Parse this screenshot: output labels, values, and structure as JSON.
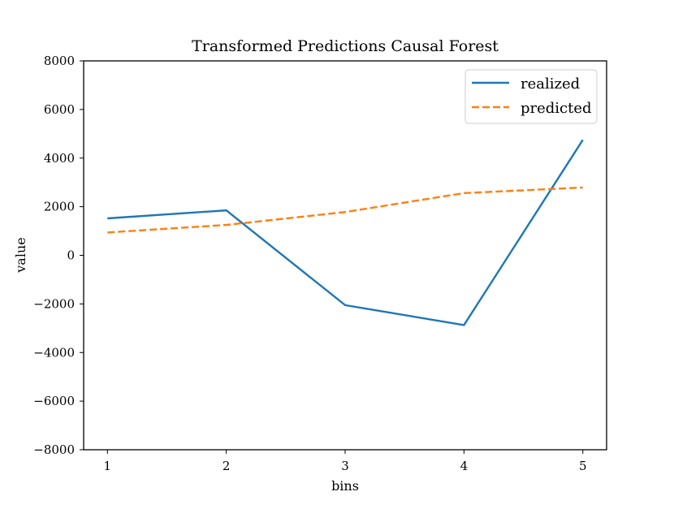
{
  "chart_data": {
    "type": "line",
    "title": "Transformed Predictions Causal Forest",
    "xlabel": "bins",
    "ylabel": "value",
    "x": [
      1,
      2,
      3,
      4,
      5
    ],
    "xlim": [
      0.8,
      5.2
    ],
    "ylim": [
      -8000,
      8000
    ],
    "x_ticks": [
      1,
      2,
      3,
      4,
      5
    ],
    "x_tick_labels": [
      "1",
      "2",
      "3",
      "4",
      "5"
    ],
    "y_ticks": [
      8000,
      6000,
      4000,
      2000,
      0,
      -2000,
      -4000,
      -6000,
      -8000
    ],
    "y_tick_labels": [
      "8000",
      "6000",
      "4000",
      "2000",
      "0",
      "−2000",
      "−4000",
      "−6000",
      "−8000"
    ],
    "grid": false,
    "legend_position": "top-right",
    "series": [
      {
        "name": "realized",
        "values": [
          1520,
          1850,
          -2050,
          -2870,
          4750
        ],
        "color": "#1f77b4",
        "line_style": "solid"
      },
      {
        "name": "predicted",
        "values": [
          940,
          1250,
          1780,
          2560,
          2790
        ],
        "color": "#ff7f0e",
        "line_style": "dashed"
      }
    ]
  }
}
